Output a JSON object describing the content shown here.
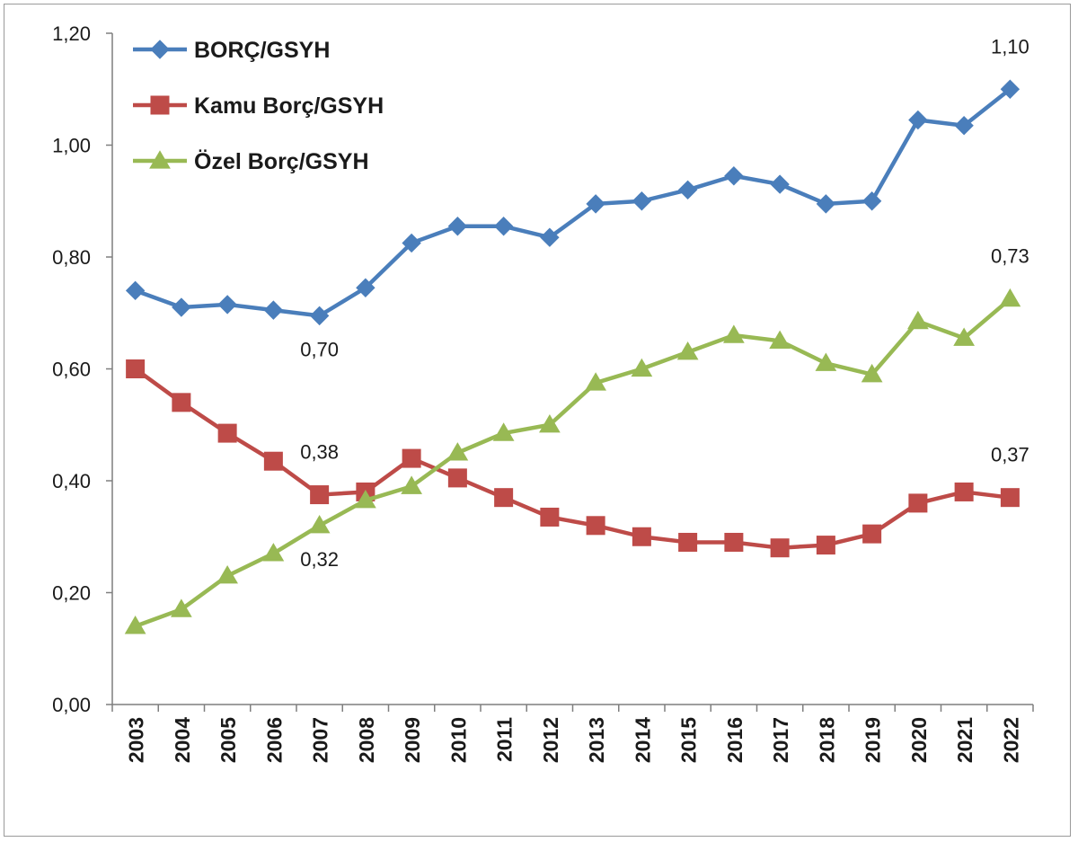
{
  "chart_data": {
    "type": "line",
    "title": "",
    "xlabel": "",
    "ylabel": "",
    "ylim": [
      0,
      1.2
    ],
    "yticks": [
      "0,00",
      "0,20",
      "0,40",
      "0,60",
      "0,80",
      "1,00",
      "1,20"
    ],
    "categories": [
      "2003",
      "2004",
      "2005",
      "2006",
      "2007",
      "2008",
      "2009",
      "2010",
      "2011",
      "2012",
      "2013",
      "2014",
      "2015",
      "2016",
      "2017",
      "2018",
      "2019",
      "2020",
      "2021",
      "2022"
    ],
    "series": [
      {
        "name": "BORÇ/GSYH",
        "color": "#4A7EBB",
        "marker": "diamond",
        "values": [
          0.74,
          0.71,
          0.715,
          0.705,
          0.695,
          0.745,
          0.825,
          0.855,
          0.855,
          0.835,
          0.895,
          0.9,
          0.92,
          0.945,
          0.93,
          0.895,
          0.9,
          1.045,
          1.035,
          1.1
        ]
      },
      {
        "name": "Kamu Borç/GSYH",
        "color": "#BE4B48",
        "marker": "square",
        "values": [
          0.6,
          0.54,
          0.485,
          0.435,
          0.375,
          0.38,
          0.44,
          0.405,
          0.37,
          0.335,
          0.32,
          0.3,
          0.29,
          0.29,
          0.28,
          0.285,
          0.305,
          0.36,
          0.38,
          0.37
        ]
      },
      {
        "name": "Özel Borç/GSYH",
        "color": "#98B954",
        "marker": "triangle",
        "values": [
          0.14,
          0.17,
          0.23,
          0.27,
          0.32,
          0.365,
          0.39,
          0.45,
          0.485,
          0.5,
          0.575,
          0.6,
          0.63,
          0.66,
          0.65,
          0.61,
          0.59,
          0.685,
          0.655,
          0.725
        ]
      }
    ],
    "legend_position": "top-left",
    "annotations": [
      {
        "text": "1,10",
        "series": 0,
        "index": 19,
        "placement": "above"
      },
      {
        "text": "0,70",
        "series": 0,
        "index": 4,
        "placement": "below"
      },
      {
        "text": "0,73",
        "series": 2,
        "index": 19,
        "placement": "above"
      },
      {
        "text": "0,38",
        "series": 1,
        "index": 4,
        "placement": "above"
      },
      {
        "text": "0,32",
        "series": 2,
        "index": 4,
        "placement": "below"
      },
      {
        "text": "0,37",
        "series": 1,
        "index": 19,
        "placement": "above"
      }
    ]
  }
}
